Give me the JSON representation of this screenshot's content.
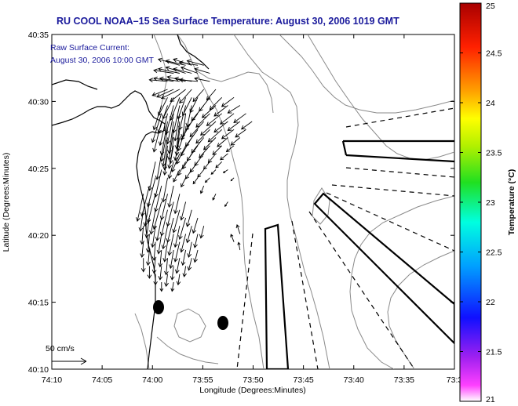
{
  "title": "RU COOL  NOAA–15  Sea Surface Temperature:  August 30, 2006 1019 GMT",
  "annotation": {
    "line1": "Raw Surface Current:",
    "line2": "August 30, 2006 10:00 GMT"
  },
  "scale": {
    "label": "50 cm/s",
    "speed_cm_s": 50
  },
  "axes": {
    "xlabel": "Longitude (Degrees:Minutes)",
    "ylabel": "Latitude (Degrees:Minutes)",
    "xticks": [
      "74:10",
      "74:05",
      "74:00",
      "73:55",
      "73:50",
      "73:45",
      "73:40",
      "73:35",
      "73:3"
    ],
    "yticks": [
      "40:35",
      "40:30",
      "40:25",
      "40:20",
      "40:15",
      "40:10"
    ]
  },
  "colorbar": {
    "label": "Temperature (°C)",
    "min": 21,
    "max": 25,
    "ticks": [
      "25",
      "24.5",
      "24",
      "23.5",
      "23",
      "22.5",
      "22",
      "21.5",
      "21"
    ]
  },
  "colors": {
    "title": "#1a1a9c",
    "coast": "#000000",
    "contour": "#8a8a8a",
    "vector": "#000000"
  },
  "current_field": {
    "vectors": [
      {
        "lon": -73.955,
        "lat": 40.545,
        "u": -14,
        "v": 4
      },
      {
        "lon": -73.945,
        "lat": 40.545,
        "u": -13,
        "v": 3
      },
      {
        "lon": -73.935,
        "lat": 40.545,
        "u": -12,
        "v": 4
      },
      {
        "lon": -73.925,
        "lat": 40.545,
        "u": -12,
        "v": 2
      },
      {
        "lon": -73.915,
        "lat": 40.545,
        "u": -11,
        "v": 3
      },
      {
        "lon": -73.965,
        "lat": 40.535,
        "u": -13,
        "v": 2
      },
      {
        "lon": -73.955,
        "lat": 40.535,
        "u": -14,
        "v": 3
      },
      {
        "lon": -73.945,
        "lat": 40.535,
        "u": -13,
        "v": 4
      },
      {
        "lon": -73.935,
        "lat": 40.535,
        "u": -12,
        "v": 3
      },
      {
        "lon": -73.925,
        "lat": 40.535,
        "u": -11,
        "v": 4
      },
      {
        "lon": -73.905,
        "lat": 40.535,
        "u": -10,
        "v": 3
      },
      {
        "lon": -73.975,
        "lat": 40.525,
        "u": -12,
        "v": 1
      },
      {
        "lon": -73.965,
        "lat": 40.525,
        "u": -13,
        "v": 2
      },
      {
        "lon": -73.955,
        "lat": 40.525,
        "u": -13,
        "v": 2
      },
      {
        "lon": -73.945,
        "lat": 40.525,
        "u": -12,
        "v": 3
      },
      {
        "lon": -73.935,
        "lat": 40.525,
        "u": -11,
        "v": 2
      },
      {
        "lon": -73.925,
        "lat": 40.525,
        "u": -12,
        "v": 1
      },
      {
        "lon": -73.905,
        "lat": 40.525,
        "u": -10,
        "v": 2
      },
      {
        "lon": -73.975,
        "lat": 40.515,
        "u": -10,
        "v": -4
      },
      {
        "lon": -73.965,
        "lat": 40.515,
        "u": -11,
        "v": -5
      },
      {
        "lon": -73.955,
        "lat": 40.515,
        "u": -12,
        "v": -6
      },
      {
        "lon": -73.945,
        "lat": 40.515,
        "u": -10,
        "v": -8
      },
      {
        "lon": -73.935,
        "lat": 40.515,
        "u": -8,
        "v": -9
      },
      {
        "lon": -73.915,
        "lat": 40.515,
        "u": -7,
        "v": -8
      },
      {
        "lon": -73.895,
        "lat": 40.515,
        "u": -6,
        "v": -7
      },
      {
        "lon": -73.975,
        "lat": 40.505,
        "u": -6,
        "v": -12
      },
      {
        "lon": -73.965,
        "lat": 40.505,
        "u": -7,
        "v": -14
      },
      {
        "lon": -73.955,
        "lat": 40.505,
        "u": -6,
        "v": -15
      },
      {
        "lon": -73.945,
        "lat": 40.505,
        "u": -5,
        "v": -14
      },
      {
        "lon": -73.935,
        "lat": 40.505,
        "u": -6,
        "v": -12
      },
      {
        "lon": -73.925,
        "lat": 40.505,
        "u": -5,
        "v": -10
      },
      {
        "lon": -73.905,
        "lat": 40.505,
        "u": -7,
        "v": -9
      },
      {
        "lon": -73.885,
        "lat": 40.505,
        "u": -8,
        "v": -8
      },
      {
        "lon": -73.865,
        "lat": 40.505,
        "u": -8,
        "v": -6
      },
      {
        "lon": -73.985,
        "lat": 40.495,
        "u": -5,
        "v": -16
      },
      {
        "lon": -73.975,
        "lat": 40.495,
        "u": -6,
        "v": -18
      },
      {
        "lon": -73.965,
        "lat": 40.495,
        "u": -5,
        "v": -19
      },
      {
        "lon": -73.955,
        "lat": 40.495,
        "u": -4,
        "v": -18
      },
      {
        "lon": -73.945,
        "lat": 40.495,
        "u": -4,
        "v": -16
      },
      {
        "lon": -73.935,
        "lat": 40.495,
        "u": -3,
        "v": -14
      },
      {
        "lon": -73.915,
        "lat": 40.495,
        "u": -8,
        "v": -10
      },
      {
        "lon": -73.895,
        "lat": 40.495,
        "u": -9,
        "v": -8
      },
      {
        "lon": -73.875,
        "lat": 40.495,
        "u": -9,
        "v": -7
      },
      {
        "lon": -73.855,
        "lat": 40.495,
        "u": -8,
        "v": -5
      },
      {
        "lon": -73.985,
        "lat": 40.485,
        "u": -6,
        "v": -19
      },
      {
        "lon": -73.975,
        "lat": 40.485,
        "u": -5,
        "v": -21
      },
      {
        "lon": -73.965,
        "lat": 40.485,
        "u": -4,
        "v": -20
      },
      {
        "lon": -73.955,
        "lat": 40.485,
        "u": -3,
        "v": -18
      },
      {
        "lon": -73.945,
        "lat": 40.485,
        "u": -2,
        "v": -16
      },
      {
        "lon": -73.925,
        "lat": 40.485,
        "u": -8,
        "v": -11
      },
      {
        "lon": -73.905,
        "lat": 40.485,
        "u": -9,
        "v": -9
      },
      {
        "lon": -73.885,
        "lat": 40.485,
        "u": -10,
        "v": -8
      },
      {
        "lon": -73.865,
        "lat": 40.485,
        "u": -9,
        "v": -7
      },
      {
        "lon": -73.845,
        "lat": 40.485,
        "u": -8,
        "v": -6
      },
      {
        "lon": -73.985,
        "lat": 40.475,
        "u": -5,
        "v": -20
      },
      {
        "lon": -73.975,
        "lat": 40.475,
        "u": -4,
        "v": -22
      },
      {
        "lon": -73.965,
        "lat": 40.475,
        "u": -3,
        "v": -21
      },
      {
        "lon": -73.955,
        "lat": 40.475,
        "u": -2,
        "v": -18
      },
      {
        "lon": -73.935,
        "lat": 40.475,
        "u": -7,
        "v": -12
      },
      {
        "lon": -73.915,
        "lat": 40.475,
        "u": -9,
        "v": -10
      },
      {
        "lon": -73.895,
        "lat": 40.475,
        "u": -10,
        "v": -9
      },
      {
        "lon": -73.875,
        "lat": 40.475,
        "u": -9,
        "v": -7
      },
      {
        "lon": -73.855,
        "lat": 40.475,
        "u": -8,
        "v": -6
      },
      {
        "lon": -73.835,
        "lat": 40.475,
        "u": -7,
        "v": -5
      },
      {
        "lon": -73.975,
        "lat": 40.465,
        "u": -4,
        "v": -21
      },
      {
        "lon": -73.965,
        "lat": 40.465,
        "u": -3,
        "v": -20
      },
      {
        "lon": -73.955,
        "lat": 40.465,
        "u": -2,
        "v": -17
      },
      {
        "lon": -73.945,
        "lat": 40.465,
        "u": -5,
        "v": -14
      },
      {
        "lon": -73.925,
        "lat": 40.465,
        "u": -8,
        "v": -11
      },
      {
        "lon": -73.905,
        "lat": 40.465,
        "u": -9,
        "v": -9
      },
      {
        "lon": -73.885,
        "lat": 40.465,
        "u": -9,
        "v": -8
      },
      {
        "lon": -73.865,
        "lat": 40.465,
        "u": -8,
        "v": -6
      },
      {
        "lon": -73.845,
        "lat": 40.465,
        "u": -7,
        "v": -5
      },
      {
        "lon": -73.975,
        "lat": 40.455,
        "u": -3,
        "v": -19
      },
      {
        "lon": -73.965,
        "lat": 40.455,
        "u": -2,
        "v": -17
      },
      {
        "lon": -73.955,
        "lat": 40.455,
        "u": -3,
        "v": -15
      },
      {
        "lon": -73.935,
        "lat": 40.455,
        "u": -7,
        "v": -12
      },
      {
        "lon": -73.915,
        "lat": 40.455,
        "u": -8,
        "v": -10
      },
      {
        "lon": -73.895,
        "lat": 40.455,
        "u": -8,
        "v": -8
      },
      {
        "lon": -73.875,
        "lat": 40.455,
        "u": -7,
        "v": -6
      },
      {
        "lon": -73.855,
        "lat": 40.455,
        "u": -6,
        "v": -5
      },
      {
        "lon": -73.975,
        "lat": 40.445,
        "u": -2,
        "v": -16
      },
      {
        "lon": -73.965,
        "lat": 40.445,
        "u": -3,
        "v": -15
      },
      {
        "lon": -73.945,
        "lat": 40.445,
        "u": -6,
        "v": -12
      },
      {
        "lon": -73.925,
        "lat": 40.445,
        "u": -7,
        "v": -10
      },
      {
        "lon": -73.905,
        "lat": 40.445,
        "u": -7,
        "v": -8
      },
      {
        "lon": -73.885,
        "lat": 40.445,
        "u": -6,
        "v": -6
      },
      {
        "lon": -73.865,
        "lat": 40.445,
        "u": -5,
        "v": -4
      },
      {
        "lon": -73.975,
        "lat": 40.435,
        "u": -2,
        "v": -14
      },
      {
        "lon": -73.955,
        "lat": 40.435,
        "u": -5,
        "v": -12
      },
      {
        "lon": -73.935,
        "lat": 40.435,
        "u": -6,
        "v": -10
      },
      {
        "lon": -73.915,
        "lat": 40.435,
        "u": -6,
        "v": -8
      },
      {
        "lon": -73.895,
        "lat": 40.435,
        "u": -5,
        "v": -6
      },
      {
        "lon": -73.875,
        "lat": 40.435,
        "u": -5,
        "v": -4
      },
      {
        "lon": -73.965,
        "lat": 40.425,
        "u": -3,
        "v": -11
      },
      {
        "lon": -73.945,
        "lat": 40.425,
        "u": -5,
        "v": -9
      },
      {
        "lon": -73.925,
        "lat": 40.425,
        "u": -5,
        "v": -7
      },
      {
        "lon": -73.905,
        "lat": 40.425,
        "u": -4,
        "v": -5
      },
      {
        "lon": -73.885,
        "lat": 40.425,
        "u": -4,
        "v": -4
      },
      {
        "lon": -73.955,
        "lat": 40.415,
        "u": -4,
        "v": -8
      },
      {
        "lon": -73.935,
        "lat": 40.415,
        "u": -4,
        "v": -6
      },
      {
        "lon": -73.915,
        "lat": 40.415,
        "u": -4,
        "v": -5
      },
      {
        "lon": -73.895,
        "lat": 40.415,
        "u": -3,
        "v": -3
      },
      {
        "lon": -73.875,
        "lat": 40.415,
        "u": -3,
        "v": -2
      },
      {
        "lon": -73.945,
        "lat": 40.405,
        "u": -3,
        "v": -6
      },
      {
        "lon": -73.925,
        "lat": 40.405,
        "u": -3,
        "v": -4
      },
      {
        "lon": -73.905,
        "lat": 40.405,
        "u": -3,
        "v": -3
      },
      {
        "lon": -73.865,
        "lat": 40.405,
        "u": -2,
        "v": -2
      },
      {
        "lon": -73.985,
        "lat": 40.435,
        "u": -3,
        "v": -17
      },
      {
        "lon": -73.995,
        "lat": 40.425,
        "u": -4,
        "v": -19
      },
      {
        "lon": -73.985,
        "lat": 40.415,
        "u": -4,
        "v": -18
      },
      {
        "lon": -73.975,
        "lat": 40.405,
        "u": -3,
        "v": -16
      },
      {
        "lon": -73.995,
        "lat": 40.405,
        "u": -5,
        "v": -19
      },
      {
        "lon": -74.005,
        "lat": 40.395,
        "u": -5,
        "v": -20
      },
      {
        "lon": -73.985,
        "lat": 40.395,
        "u": -4,
        "v": -17
      },
      {
        "lon": -73.965,
        "lat": 40.395,
        "u": -3,
        "v": -14
      },
      {
        "lon": -74.015,
        "lat": 40.385,
        "u": -4,
        "v": -18
      },
      {
        "lon": -73.995,
        "lat": 40.385,
        "u": -5,
        "v": -19
      },
      {
        "lon": -73.975,
        "lat": 40.385,
        "u": -4,
        "v": -17
      },
      {
        "lon": -73.955,
        "lat": 40.385,
        "u": -3,
        "v": -13
      },
      {
        "lon": -74.005,
        "lat": 40.375,
        "u": -3,
        "v": -16
      },
      {
        "lon": -73.985,
        "lat": 40.375,
        "u": -5,
        "v": -18
      },
      {
        "lon": -73.965,
        "lat": 40.375,
        "u": -4,
        "v": -16
      },
      {
        "lon": -73.945,
        "lat": 40.375,
        "u": -3,
        "v": -12
      },
      {
        "lon": -74.015,
        "lat": 40.365,
        "u": -2,
        "v": -14
      },
      {
        "lon": -73.995,
        "lat": 40.365,
        "u": -3,
        "v": -16
      },
      {
        "lon": -73.975,
        "lat": 40.365,
        "u": -4,
        "v": -17
      },
      {
        "lon": -73.955,
        "lat": 40.365,
        "u": -4,
        "v": -15
      },
      {
        "lon": -73.935,
        "lat": 40.365,
        "u": -3,
        "v": -11
      },
      {
        "lon": -74.005,
        "lat": 40.355,
        "u": -2,
        "v": -13
      },
      {
        "lon": -73.985,
        "lat": 40.355,
        "u": -3,
        "v": -15
      },
      {
        "lon": -73.965,
        "lat": 40.355,
        "u": -4,
        "v": -16
      },
      {
        "lon": -73.945,
        "lat": 40.355,
        "u": -4,
        "v": -14
      },
      {
        "lon": -73.925,
        "lat": 40.355,
        "u": -3,
        "v": -10
      },
      {
        "lon": -74.015,
        "lat": 40.345,
        "u": -1,
        "v": -12
      },
      {
        "lon": -73.995,
        "lat": 40.345,
        "u": -2,
        "v": -14
      },
      {
        "lon": -73.975,
        "lat": 40.345,
        "u": -3,
        "v": -15
      },
      {
        "lon": -73.955,
        "lat": 40.345,
        "u": -3,
        "v": -14
      },
      {
        "lon": -73.935,
        "lat": 40.345,
        "u": -3,
        "v": -11
      },
      {
        "lon": -73.915,
        "lat": 40.345,
        "u": -2,
        "v": -8
      },
      {
        "lon": -74.005,
        "lat": 40.335,
        "u": -1,
        "v": -12
      },
      {
        "lon": -73.985,
        "lat": 40.335,
        "u": -2,
        "v": -13
      },
      {
        "lon": -73.965,
        "lat": 40.335,
        "u": -3,
        "v": -14
      },
      {
        "lon": -73.945,
        "lat": 40.335,
        "u": -3,
        "v": -12
      },
      {
        "lon": -73.925,
        "lat": 40.335,
        "u": -2,
        "v": -9
      },
      {
        "lon": -74.015,
        "lat": 40.325,
        "u": -1,
        "v": -10
      },
      {
        "lon": -73.995,
        "lat": 40.325,
        "u": -1,
        "v": -12
      },
      {
        "lon": -73.975,
        "lat": 40.325,
        "u": -2,
        "v": -13
      },
      {
        "lon": -73.955,
        "lat": 40.325,
        "u": -3,
        "v": -13
      },
      {
        "lon": -73.935,
        "lat": 40.325,
        "u": -2,
        "v": -10
      },
      {
        "lon": -74.005,
        "lat": 40.315,
        "u": -1,
        "v": -10
      },
      {
        "lon": -73.985,
        "lat": 40.315,
        "u": -1,
        "v": -11
      },
      {
        "lon": -73.965,
        "lat": 40.315,
        "u": -2,
        "v": -12
      },
      {
        "lon": -73.945,
        "lat": 40.315,
        "u": -2,
        "v": -10
      },
      {
        "lon": -73.925,
        "lat": 40.315,
        "u": -2,
        "v": -8
      },
      {
        "lon": -74.015,
        "lat": 40.305,
        "u": 0,
        "v": -9
      },
      {
        "lon": -73.995,
        "lat": 40.305,
        "u": -1,
        "v": -10
      },
      {
        "lon": -73.975,
        "lat": 40.305,
        "u": -1,
        "v": -11
      },
      {
        "lon": -73.955,
        "lat": 40.305,
        "u": -2,
        "v": -10
      },
      {
        "lon": -73.935,
        "lat": 40.305,
        "u": -2,
        "v": -8
      },
      {
        "lon": -74.005,
        "lat": 40.295,
        "u": 0,
        "v": -8
      },
      {
        "lon": -73.985,
        "lat": 40.295,
        "u": -1,
        "v": -9
      },
      {
        "lon": -73.965,
        "lat": 40.295,
        "u": -1,
        "v": -9
      },
      {
        "lon": -73.945,
        "lat": 40.295,
        "u": -1,
        "v": -7
      },
      {
        "lon": -73.995,
        "lat": 40.285,
        "u": 0,
        "v": -7
      },
      {
        "lon": -73.975,
        "lat": 40.285,
        "u": -1,
        "v": -8
      },
      {
        "lon": -73.955,
        "lat": 40.285,
        "u": -1,
        "v": -7
      },
      {
        "lon": -73.985,
        "lat": 40.275,
        "u": 0,
        "v": -6
      },
      {
        "lon": -73.965,
        "lat": 40.275,
        "u": -1,
        "v": -6
      },
      {
        "lon": -73.915,
        "lat": 40.395,
        "u": -2,
        "v": -5
      },
      {
        "lon": -73.895,
        "lat": 40.385,
        "u": -2,
        "v": -4
      },
      {
        "lon": -73.875,
        "lat": 40.375,
        "u": -2,
        "v": -3
      },
      {
        "lon": -73.855,
        "lat": 40.335,
        "u": -2,
        "v": 6
      },
      {
        "lon": -73.865,
        "lat": 40.325,
        "u": -2,
        "v": 5
      },
      {
        "lon": -73.855,
        "lat": 40.315,
        "u": -1,
        "v": 5
      }
    ]
  }
}
